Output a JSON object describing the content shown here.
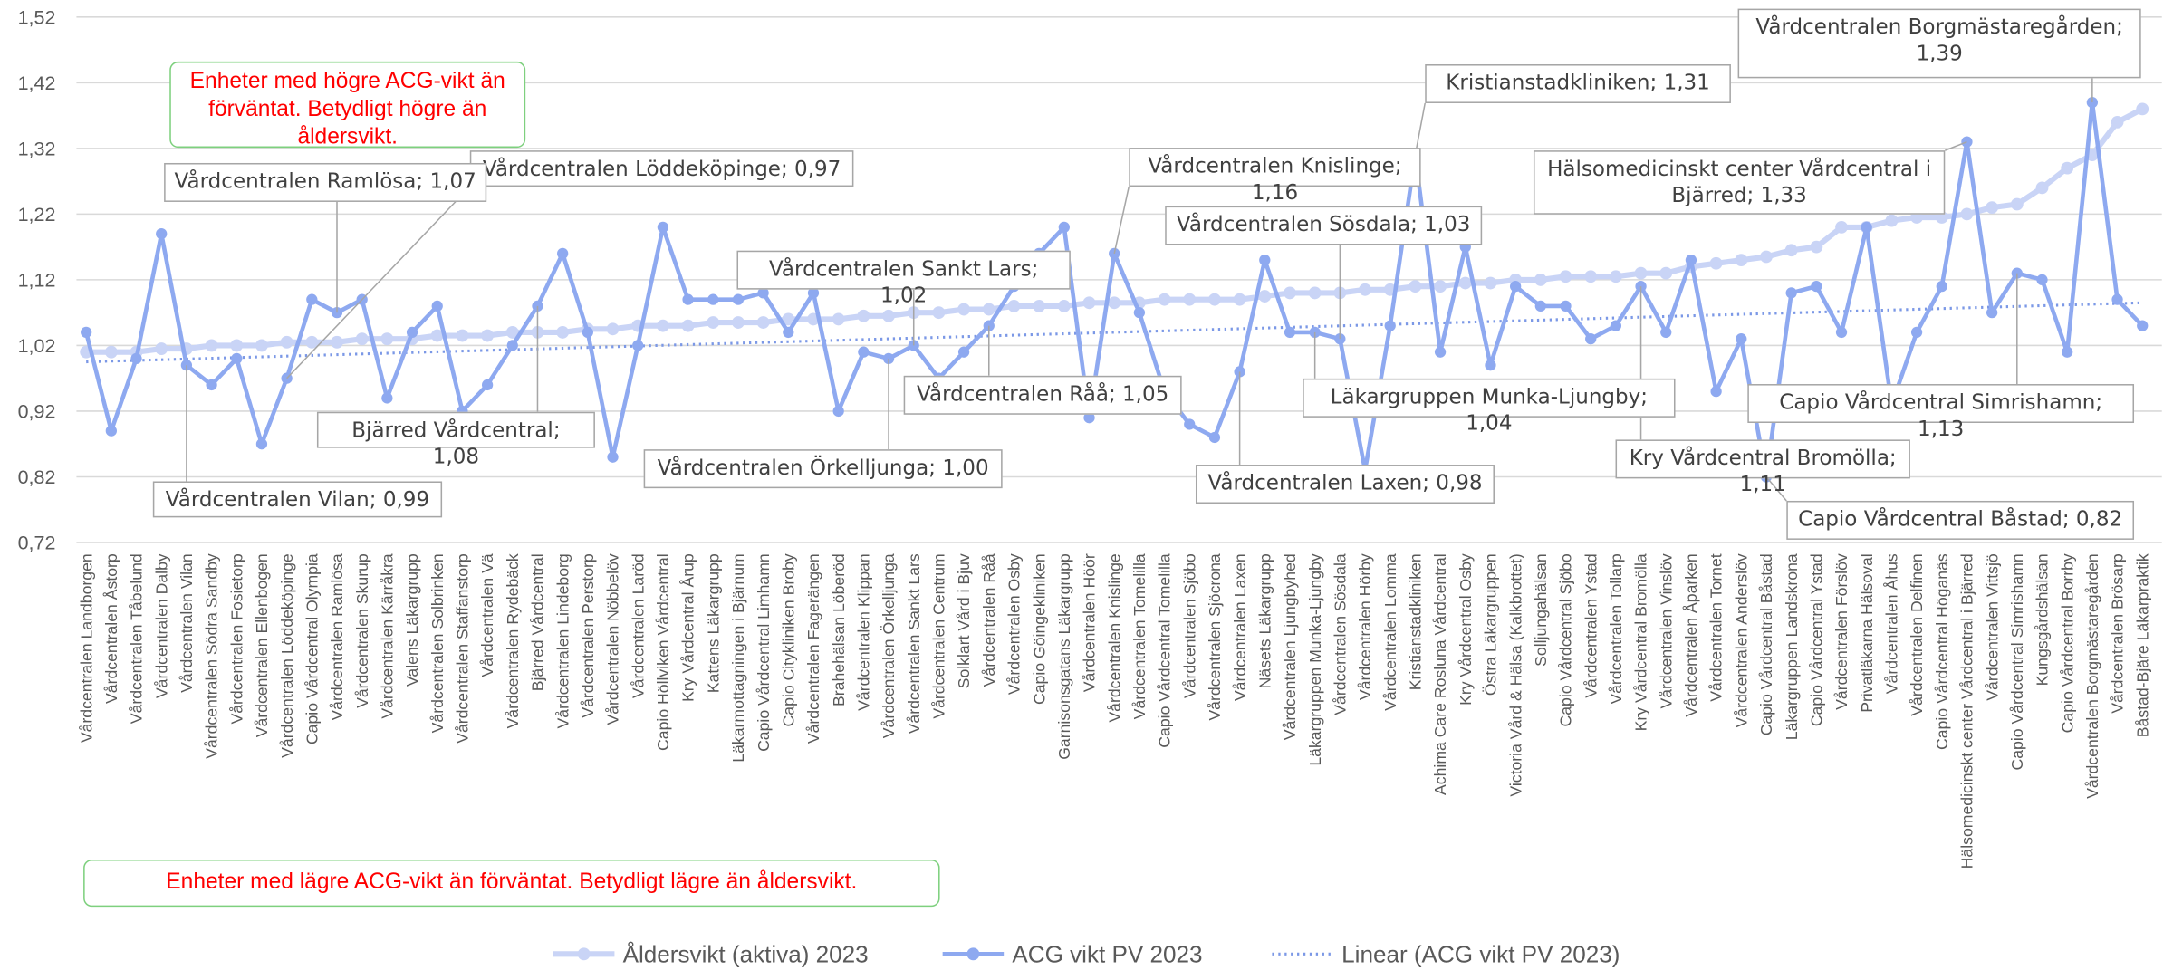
{
  "chart_data": {
    "type": "line",
    "categories": [
      "Vårdcentralen Landborgen",
      "Vårdcentralen Åstorp",
      "Vårdcentralen Tåbelund",
      "Vårdcentralen Dalby",
      "Vårdcentralen Vilan",
      "Vårdcentralen Södra Sandby",
      "Vårdcentralen Fosietorp",
      "Vårdcentralen Ellenbogen",
      "Vårdcentralen Löddeköpinge",
      "Capio Vårdcentral Olympia",
      "Vårdcentralen Ramlösa",
      "Vårdcentralen Skurup",
      "Vårdcentralen Kärråkra",
      "Valens Läkargrupp",
      "Vårdcentralen Solbrinken",
      "Vårdcentralen Staffanstorp",
      "Vårdcentralen Vä",
      "Vårdcentralen Rydebäck",
      "Bjärred Vårdcentral",
      "Vårdcentralen Lindeborg",
      "Vårdcentralen Perstorp",
      "Vårdcentralen Nöbbelöv",
      "Vårdcentralen Laröd",
      "Capio Höllviken Vårdcentral",
      "Kry Vårdcentral Årup",
      "Kattens Läkargrupp",
      "Läkarmottagningen i Bjärnum",
      "Capio Vårdcentral Limhamn",
      "Capio Citykliniken Broby",
      "Vårdcentralen Fagerängen",
      "Brahehälsan Löberöd",
      "Vårdcentralen Klippan",
      "Vårdcentralen Örkelljunga",
      "Vårdcentralen Sankt Lars",
      "Vårdcentralen Centrum",
      "Solklart Vård i Bjuv",
      "Vårdcentralen Råå",
      "Vårdcentralen Osby",
      "Capio Göingekliniken",
      "Garnisonsgatans Läkargrupp",
      "Vårdcentralen Höör",
      "Vårdcentralen Knislinge",
      "Vårdcentralen Tomelilla",
      "Capio Vårdcentral Tomelilla",
      "Vårdcentralen Sjöbo",
      "Vårdcentralen Sjöcrona",
      "Vårdcentralen Laxen",
      "Näsets Läkargrupp",
      "Vårdcentralen Ljungbyhed",
      "Läkargruppen Munka-Ljungby",
      "Vårdcentralen Sösdala",
      "Vårdcentralen Hörby",
      "Vårdcentralen Lomma",
      "Kristianstadkliniken",
      "Achima Care Rosluna Vårdcentral",
      "Kry Vårdcentral Osby",
      "Östra Läkargruppen",
      "Victoria Vård & Hälsa (Kalkbrottet)",
      "Solljungahälsan",
      "Capio Vårdcentral Sjöbo",
      "Vårdcentralen Ystad",
      "Vårdcentralen Tollarp",
      "Kry Vårdcentral Bromölla",
      "Vårdcentralen Vinslöv",
      "Vårdcentralen Åparken",
      "Vårdcentralen Tornet",
      "Vårdcentralen Anderslöv",
      "Capio Vårdcentral Båstad",
      "Läkargruppen Landskrona",
      "Capio Vårdcentral Ystad",
      "Vårdcentralen Förslöv",
      "Privatläkarna Hälsoval",
      "Vårdcentralen Åhus",
      "Vårdcentralen Delfinen",
      "Capio Vårdcentral Höganäs",
      "Hälsomedicinskt center Vårdcentral i Bjärred",
      "Vårdcentralen Vittsjö",
      "Capio Vårdcentral Simrishamn",
      "Kungsgårdshälsan",
      "Capio Vårdcentral Borrby",
      "Vårdcentralen Borgmästaregården",
      "Vårdcentralen Brösarp",
      "Båstad-Bjäre Läkarpraktik"
    ],
    "series": [
      {
        "name": "Åldersvikt (aktiva) 2023",
        "color": "#c9d4f6",
        "values": [
          1.01,
          1.01,
          1.01,
          1.015,
          1.015,
          1.02,
          1.02,
          1.02,
          1.025,
          1.025,
          1.025,
          1.03,
          1.03,
          1.03,
          1.035,
          1.035,
          1.035,
          1.04,
          1.04,
          1.04,
          1.045,
          1.045,
          1.05,
          1.05,
          1.05,
          1.055,
          1.055,
          1.055,
          1.06,
          1.06,
          1.06,
          1.065,
          1.065,
          1.07,
          1.07,
          1.075,
          1.075,
          1.08,
          1.08,
          1.08,
          1.085,
          1.085,
          1.085,
          1.09,
          1.09,
          1.09,
          1.09,
          1.095,
          1.1,
          1.1,
          1.1,
          1.105,
          1.105,
          1.11,
          1.11,
          1.115,
          1.115,
          1.12,
          1.12,
          1.125,
          1.125,
          1.125,
          1.13,
          1.13,
          1.14,
          1.145,
          1.15,
          1.155,
          1.165,
          1.17,
          1.2,
          1.2,
          1.21,
          1.215,
          1.215,
          1.22,
          1.23,
          1.235,
          1.26,
          1.29,
          1.31,
          1.36,
          1.38
        ]
      },
      {
        "name": "ACG vikt PV 2023",
        "color": "#8ea9f0",
        "values": [
          1.04,
          0.89,
          1.0,
          1.19,
          0.99,
          0.96,
          1.0,
          0.87,
          0.97,
          1.09,
          1.07,
          1.09,
          0.94,
          1.04,
          1.08,
          0.92,
          0.96,
          1.02,
          1.08,
          1.16,
          1.04,
          0.85,
          1.02,
          1.2,
          1.09,
          1.09,
          1.09,
          1.1,
          1.04,
          1.1,
          0.92,
          1.01,
          1.0,
          1.02,
          0.97,
          1.01,
          1.05,
          1.11,
          1.16,
          1.2,
          0.91,
          1.16,
          1.07,
          0.95,
          0.9,
          0.88,
          0.98,
          1.15,
          1.04,
          1.04,
          1.03,
          0.83,
          1.05,
          1.31,
          1.01,
          1.17,
          0.99,
          1.11,
          1.08,
          1.08,
          1.03,
          1.05,
          1.11,
          1.04,
          1.15,
          0.95,
          1.03,
          0.82,
          1.1,
          1.11,
          1.04,
          1.2,
          0.93,
          1.04,
          1.11,
          1.33,
          1.07,
          1.13,
          1.12,
          1.01,
          1.39,
          1.09,
          1.05
        ]
      }
    ],
    "trendline": {
      "name": "Linear (ACG vikt PV 2023)",
      "color": "#7b98e6",
      "start": 0.995,
      "end": 1.085
    },
    "ylim": [
      0.72,
      1.52
    ],
    "yticks": [
      {
        "value": 0.72,
        "label": "0,72"
      },
      {
        "value": 0.82,
        "label": "0,82"
      },
      {
        "value": 0.92,
        "label": "0,92"
      },
      {
        "value": 1.02,
        "label": "1,02"
      },
      {
        "value": 1.12,
        "label": "1,12"
      },
      {
        "value": 1.22,
        "label": "1,22"
      },
      {
        "value": 1.32,
        "label": "1,32"
      },
      {
        "value": 1.42,
        "label": "1,42"
      },
      {
        "value": 1.52,
        "label": "1,52"
      }
    ],
    "grid": true,
    "legend": "bottom",
    "annotations": [
      "Vårdcentralen Löddeköpinge; 0,97",
      "Vårdcentralen Ramlösa; 1,07",
      "Bjärred Vårdcentral; 1,08",
      "Vårdcentralen Vilan; 0,99",
      "Vårdcentralen Sankt Lars; 1,02",
      "Vårdcentralen Örkelljunga; 1,00",
      "Vårdcentralen Råå; 1,05",
      "Vårdcentralen Knislinge; 1,16",
      "Vårdcentralen Sösdala; 1,03",
      "Kristianstadkliniken; 1,31",
      "Vårdcentralen Laxen; 0,98",
      "Läkargruppen Munka-Ljungby; 1,04",
      "Vårdcentralen Borgmästaregården; 1,39",
      "Hälsomedicinskt center Vårdcentral i Bjärred; 1,33",
      "Capio Vårdcentral Simrishamn; 1,13",
      "Kry Vårdcentral Bromölla; 1,11",
      "Capio Vårdcentral Båstad; 0,82"
    ],
    "notes": [
      "Enheter med högre ACG-vikt än förväntat. Betydligt högre än åldersvikt.",
      "Enheter med lägre ACG-vikt än förväntat. Betydligt lägre än åldersvikt."
    ]
  }
}
